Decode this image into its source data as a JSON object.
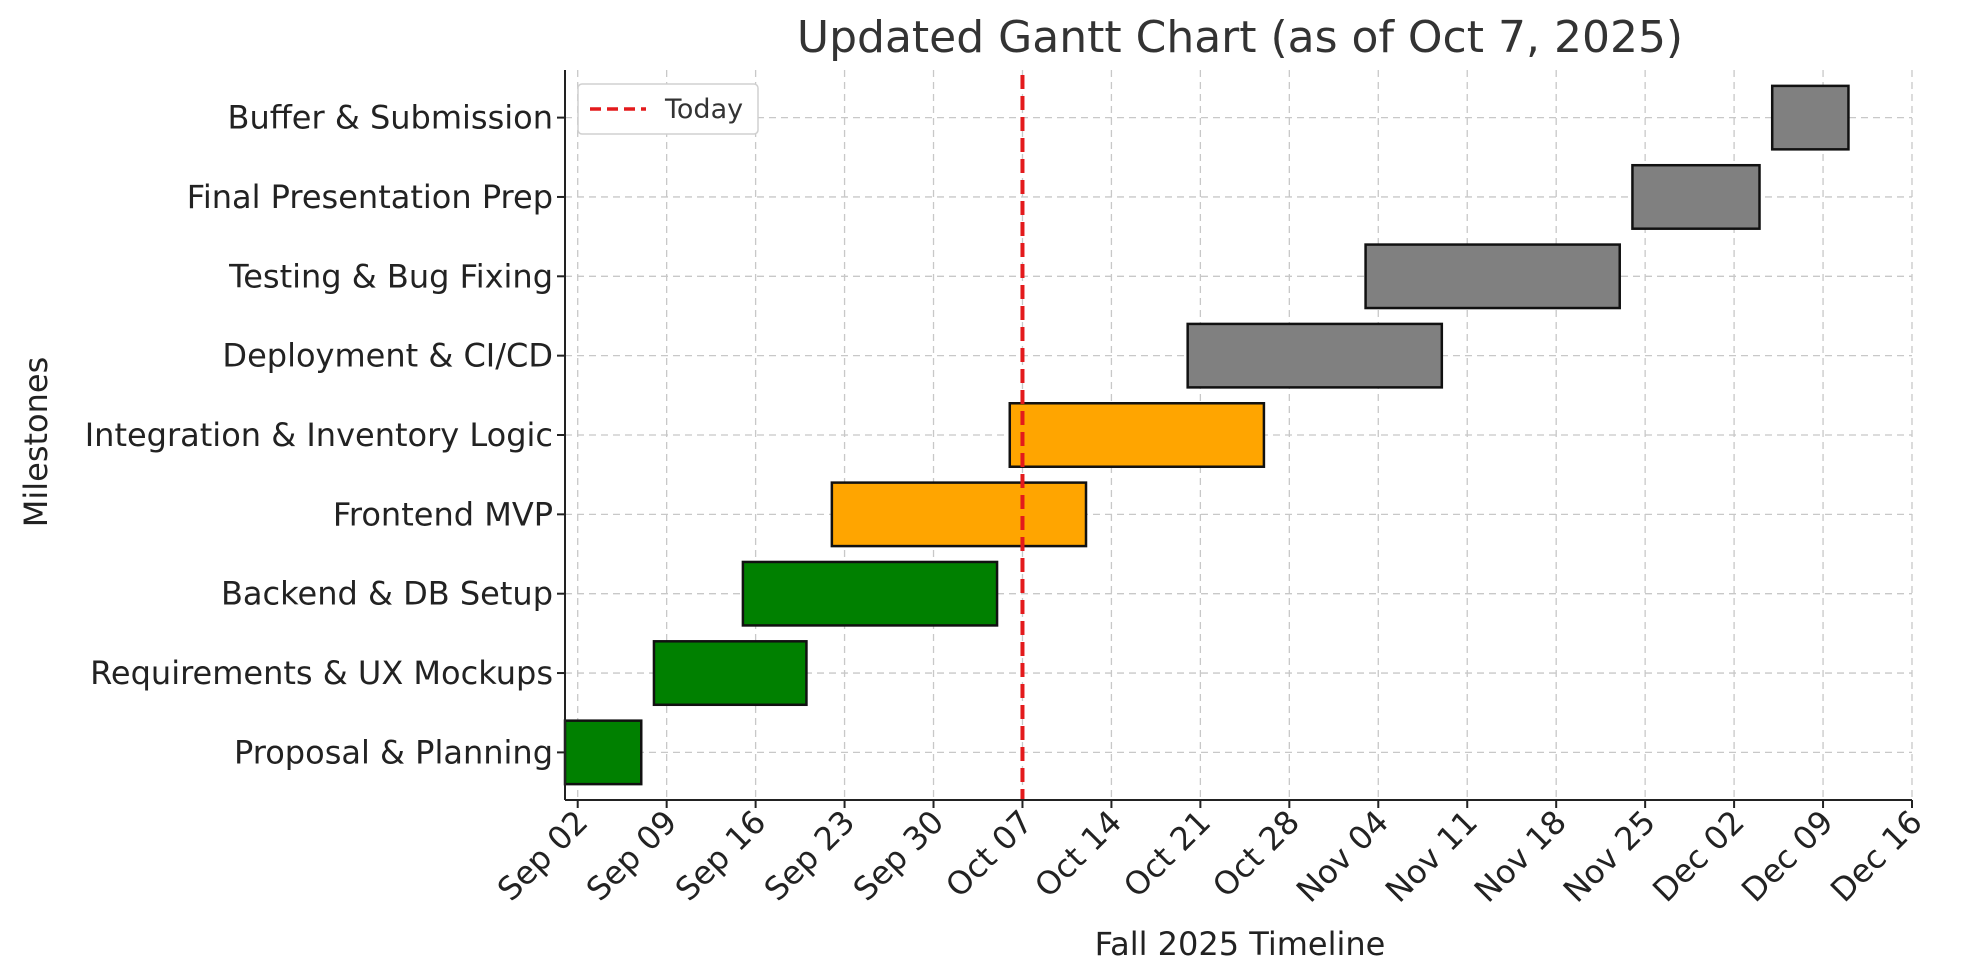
{
  "chart_data": {
    "type": "gantt",
    "title": "Updated Gantt Chart (as of Oct 7, 2025)",
    "xlabel": "Fall 2025 Timeline",
    "ylabel": "Milestones",
    "xlim": [
      "2025-09-01",
      "2025-12-16"
    ],
    "x_ticks": [
      "2025-09-02",
      "2025-09-09",
      "2025-09-16",
      "2025-09-23",
      "2025-09-30",
      "2025-10-07",
      "2025-10-14",
      "2025-10-21",
      "2025-10-28",
      "2025-11-04",
      "2025-11-11",
      "2025-11-18",
      "2025-11-25",
      "2025-12-02",
      "2025-12-09",
      "2025-12-16"
    ],
    "x_tick_labels": [
      "Sep 02",
      "Sep 09",
      "Sep 16",
      "Sep 23",
      "Sep 30",
      "Oct 07",
      "Oct 14",
      "Oct 21",
      "Oct 28",
      "Nov 04",
      "Nov 11",
      "Nov 18",
      "Nov 25",
      "Dec 02",
      "Dec 09",
      "Dec 16"
    ],
    "grid": true,
    "legend": {
      "position": "top-left",
      "entries": [
        {
          "label": "Today",
          "style": "dashed",
          "color": "#e31a1c"
        }
      ]
    },
    "today": "2025-10-07",
    "tasks": [
      {
        "name": "Proposal & Planning",
        "start": "2025-09-01",
        "end": "2025-09-07",
        "color": "#008000"
      },
      {
        "name": "Requirements & UX Mockups",
        "start": "2025-09-08",
        "end": "2025-09-20",
        "color": "#008000"
      },
      {
        "name": "Backend & DB Setup",
        "start": "2025-09-15",
        "end": "2025-10-05",
        "color": "#008000"
      },
      {
        "name": "Frontend MVP",
        "start": "2025-09-22",
        "end": "2025-10-12",
        "color": "#ffa500"
      },
      {
        "name": "Integration & Inventory Logic",
        "start": "2025-10-06",
        "end": "2025-10-26",
        "color": "#ffa500"
      },
      {
        "name": "Deployment & CI/CD",
        "start": "2025-10-20",
        "end": "2025-11-09",
        "color": "#808080"
      },
      {
        "name": "Testing & Bug Fixing",
        "start": "2025-11-03",
        "end": "2025-11-23",
        "color": "#808080"
      },
      {
        "name": "Final Presentation Prep",
        "start": "2025-11-24",
        "end": "2025-12-04",
        "color": "#808080"
      },
      {
        "name": "Buffer & Submission",
        "start": "2025-12-05",
        "end": "2025-12-11",
        "color": "#808080"
      }
    ]
  }
}
